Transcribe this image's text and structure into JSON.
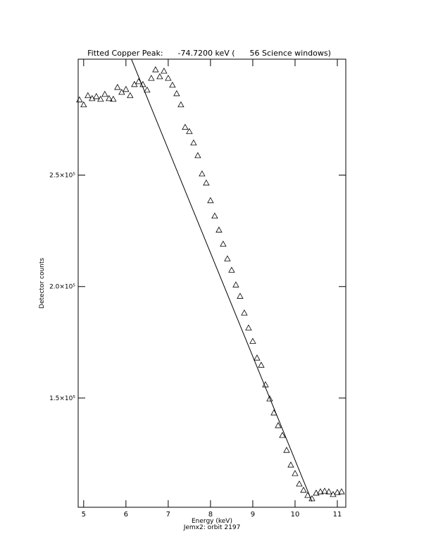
{
  "chart_data": {
    "type": "scatter",
    "title": "Fitted Copper Peak:      -74.7200 keV (      56 Science windows)",
    "x_label": "Energy (keV)",
    "subtitle": "Jemx2: orbit 2197",
    "y_label": "Detector counts",
    "xlim": [
      4.87,
      11.2
    ],
    "ylim": [
      101000,
      302000
    ],
    "xticks": [
      5,
      6,
      7,
      8,
      9,
      10,
      11
    ],
    "yticks": [
      {
        "value": 150000,
        "label": "1.5×10⁵"
      },
      {
        "value": 200000,
        "label": "2.0×10⁵"
      },
      {
        "value": 250000,
        "label": "2.5×10⁵"
      }
    ],
    "marker_color": "#000000",
    "x": [
      4.9,
      5.0,
      5.1,
      5.2,
      5.3,
      5.4,
      5.5,
      5.6,
      5.7,
      5.8,
      5.9,
      6.0,
      6.1,
      6.2,
      6.3,
      6.4,
      6.5,
      6.6,
      6.7,
      6.8,
      6.9,
      7.0,
      7.1,
      7.2,
      7.3,
      7.4,
      7.5,
      7.6,
      7.7,
      7.8,
      7.9,
      8.0,
      8.1,
      8.2,
      8.3,
      8.4,
      8.5,
      8.6,
      8.7,
      8.8,
      8.9,
      9.0,
      9.1,
      9.2,
      9.3,
      9.4,
      9.5,
      9.6,
      9.7,
      9.8,
      9.9,
      10.0,
      10.1,
      10.2,
      10.3,
      10.4,
      10.5,
      10.6,
      10.7,
      10.8,
      10.9,
      11.0,
      11.1
    ],
    "y": [
      283800,
      281600,
      285700,
      284400,
      285300,
      284100,
      286300,
      284400,
      284100,
      289400,
      287200,
      288500,
      285700,
      290700,
      292000,
      290700,
      288200,
      293500,
      297300,
      294200,
      296700,
      293500,
      290400,
      286600,
      281600,
      271500,
      269600,
      264500,
      258800,
      250600,
      246500,
      238600,
      231700,
      225400,
      219100,
      212500,
      207400,
      200800,
      195700,
      188200,
      181500,
      175500,
      168000,
      164800,
      156000,
      149700,
      143400,
      137700,
      133300,
      126600,
      120000,
      116200,
      111500,
      108700,
      106400,
      104900,
      107400,
      108000,
      108300,
      108000,
      106800,
      107700,
      108000
    ],
    "fit": {
      "color": "#000000",
      "x": [
        6.13,
        10.4
      ],
      "y": [
        302000,
        103600
      ]
    }
  }
}
